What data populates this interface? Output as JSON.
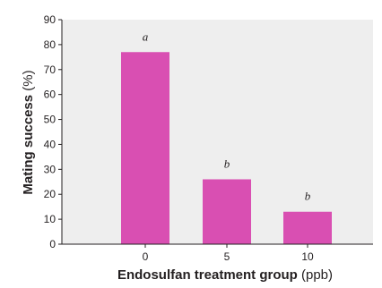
{
  "chart_data": {
    "type": "bar",
    "categories": [
      "0",
      "5",
      "10"
    ],
    "values": [
      77,
      26,
      13
    ],
    "significance_labels": [
      "a",
      "b",
      "b"
    ],
    "ylim": [
      0,
      90
    ],
    "yticks": [
      0,
      10,
      20,
      30,
      40,
      50,
      60,
      70,
      80,
      90
    ],
    "xlabel_bold": "Endosulfan treatment group",
    "xlabel_unit": "(ppb)",
    "ylabel_bold": "Mating success",
    "ylabel_unit": "(%)",
    "grid": false,
    "colors": {
      "bar": "#d94fb2",
      "plot_background": "#eeeeee",
      "axis": "#231f20"
    }
  }
}
